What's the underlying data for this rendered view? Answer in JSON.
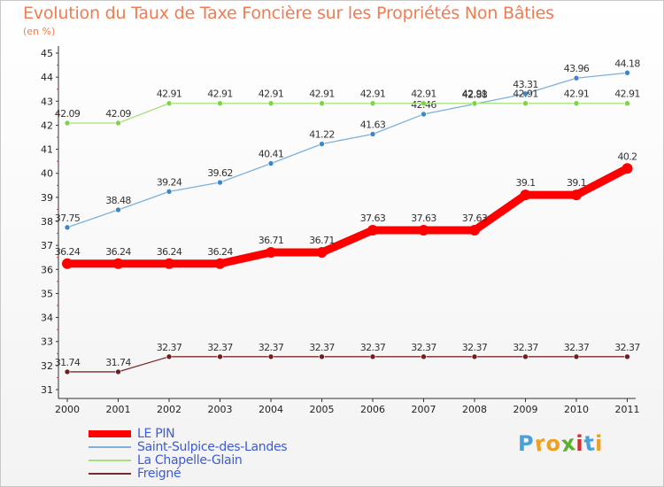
{
  "header": {
    "title": "Evolution du Taux de Taxe Foncière sur les Propriétés Non Bâties",
    "subtitle": "(en %)"
  },
  "logo": {
    "letters": [
      "P",
      "r",
      "o",
      "x",
      "i",
      "t",
      "i"
    ],
    "colors": [
      "#4aa0d8",
      "#f0a020",
      "#f0a020",
      "#5cb030",
      "#d03030",
      "#4aa0d8",
      "#f0a020"
    ]
  },
  "chart_data": {
    "type": "line",
    "x": [
      "2000",
      "2001",
      "2002",
      "2003",
      "2004",
      "2005",
      "2006",
      "2007",
      "2008",
      "2009",
      "2010",
      "2011"
    ],
    "ylim": [
      31,
      45
    ],
    "yticks": [
      "31",
      "32",
      "33",
      "34",
      "35",
      "36",
      "37",
      "38",
      "39",
      "40",
      "41",
      "42",
      "43",
      "44",
      "45"
    ],
    "grid": false,
    "legend_position": "bottom-left",
    "series": [
      {
        "name": "LE PIN",
        "color": "#ff0000",
        "values": [
          36.24,
          36.24,
          36.24,
          36.24,
          36.71,
          36.71,
          37.63,
          37.63,
          37.63,
          39.1,
          39.1,
          40.2
        ],
        "labels": [
          "36.24",
          "36.24",
          "36.24",
          "36.24",
          "36.71",
          "36.71",
          "37.63",
          "37.63",
          "37.63",
          "39.1",
          "39.1",
          "40.2"
        ]
      },
      {
        "name": "Saint-Sulpice-des-Landes",
        "color": "#7fb0d8",
        "marker": "#3f86c4",
        "values": [
          37.75,
          38.48,
          39.24,
          39.62,
          40.41,
          41.22,
          41.63,
          42.46,
          42.88,
          43.31,
          43.96,
          44.18
        ],
        "labels": [
          "37.75",
          "38.48",
          "39.24",
          "39.62",
          "40.41",
          "41.22",
          "41.63",
          "42.46",
          "42.88",
          "43.31",
          "43.96",
          "44.18"
        ]
      },
      {
        "name": "La Chapelle-Glain",
        "color": "#a6e07a",
        "marker": "#7fd34a",
        "values": [
          42.09,
          42.09,
          42.91,
          42.91,
          42.91,
          42.91,
          42.91,
          42.91,
          42.91,
          42.91,
          42.91,
          42.91
        ],
        "labels": [
          "42.09",
          "42.09",
          "42.91",
          "42.91",
          "42.91",
          "42.91",
          "42.91",
          "42.91",
          "42.91",
          "42.91",
          "42.91",
          "42.91"
        ]
      },
      {
        "name": "Freigné",
        "color": "#7a2a2a",
        "marker": "#6e2020",
        "values": [
          31.74,
          31.74,
          32.37,
          32.37,
          32.37,
          32.37,
          32.37,
          32.37,
          32.37,
          32.37,
          32.37,
          32.37
        ],
        "labels": [
          "31.74",
          "31.74",
          "32.37",
          "32.37",
          "32.37",
          "32.37",
          "32.37",
          "32.37",
          "32.37",
          "32.37",
          "32.37",
          "32.37"
        ]
      }
    ]
  }
}
